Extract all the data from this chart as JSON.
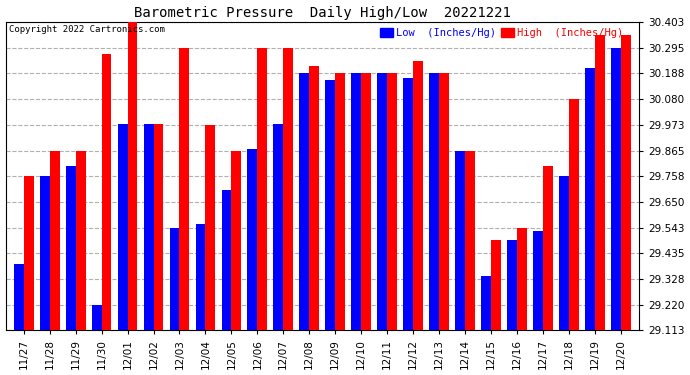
{
  "title": "Barometric Pressure  Daily High/Low  20221221",
  "copyright": "Copyright 2022 Cartronics.com",
  "legend_low": "Low  (Inches/Hg)",
  "legend_high": "High  (Inches/Hg)",
  "categories": [
    "11/27",
    "11/28",
    "11/29",
    "11/30",
    "12/01",
    "12/02",
    "12/03",
    "12/04",
    "12/05",
    "12/06",
    "12/07",
    "12/08",
    "12/09",
    "12/10",
    "12/11",
    "12/12",
    "12/13",
    "12/14",
    "12/15",
    "12/16",
    "12/17",
    "12/18",
    "12/19",
    "12/20"
  ],
  "low_values": [
    29.39,
    29.758,
    29.8,
    29.22,
    29.975,
    29.975,
    29.54,
    29.56,
    29.7,
    29.87,
    29.975,
    30.19,
    30.16,
    30.188,
    30.188,
    30.17,
    30.188,
    29.865,
    29.34,
    29.49,
    29.53,
    29.76,
    30.21,
    30.295
  ],
  "high_values": [
    29.758,
    29.865,
    29.865,
    30.27,
    30.403,
    29.975,
    30.295,
    29.973,
    29.865,
    30.295,
    30.295,
    30.22,
    30.188,
    30.188,
    30.188,
    30.24,
    30.188,
    29.865,
    29.49,
    29.543,
    29.8,
    30.08,
    30.35,
    30.35
  ],
  "ymin": 29.113,
  "ymax": 30.403,
  "yticks": [
    29.113,
    29.22,
    29.328,
    29.435,
    29.543,
    29.65,
    29.758,
    29.865,
    29.973,
    30.08,
    30.188,
    30.295,
    30.403
  ],
  "bar_width": 0.38,
  "low_color": "#0000ff",
  "high_color": "#ff0000",
  "bg_color": "#ffffff",
  "grid_color": "#b0b0b0",
  "title_color": "#000000",
  "copyright_color": "#000000",
  "legend_low_color": "#0000ff",
  "legend_high_color": "#ff0000"
}
